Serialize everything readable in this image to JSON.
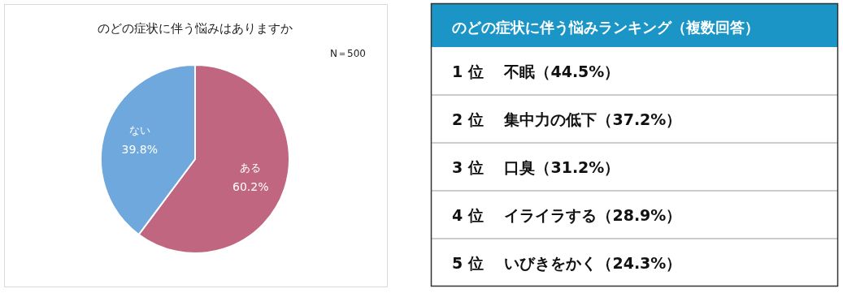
{
  "chart_data": [
    {
      "type": "pie",
      "title": "のどの症状に伴う悩みはありますか",
      "categories": [
        "ある",
        "ない"
      ],
      "values": [
        60.2,
        39.8
      ],
      "colors": [
        "#c06680",
        "#6fa8dc"
      ],
      "value_labels": [
        "60.2%",
        "39.8%"
      ],
      "annotations": [
        "N＝500"
      ]
    },
    {
      "type": "other",
      "title": "のどの症状に伴う悩みランキング（複数回答）",
      "annotations": [
        "1 位　 不眠（44.5%）",
        "2 位　 集中力の低下（37.2%）",
        "3 位　 口臭（31.2%）",
        "4 位　 イライラする（28.9%）",
        "5 位　 いびきをかく（24.3%）"
      ]
    }
  ]
}
